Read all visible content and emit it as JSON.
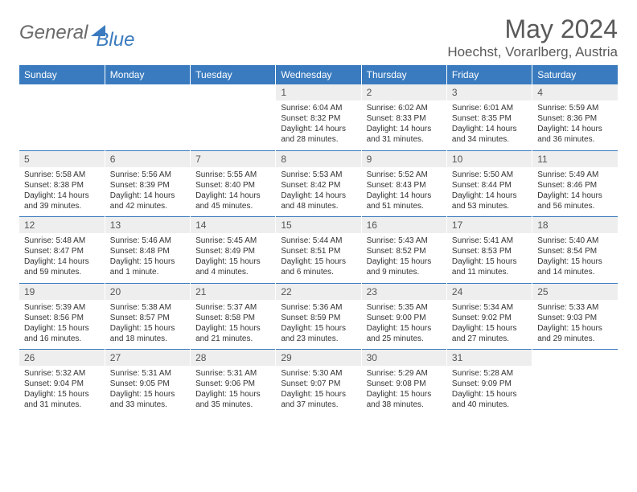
{
  "logo": {
    "part1": "General",
    "part2": "Blue"
  },
  "title": "May 2024",
  "location": "Hoechst, Vorarlberg, Austria",
  "colors": {
    "header_bg": "#3a7bbf",
    "header_text": "#ffffff",
    "daynum_bg": "#eeeeee",
    "text": "#333333",
    "title_text": "#595959"
  },
  "weekdays": [
    "Sunday",
    "Monday",
    "Tuesday",
    "Wednesday",
    "Thursday",
    "Friday",
    "Saturday"
  ],
  "weeks": [
    [
      null,
      null,
      null,
      {
        "n": "1",
        "sunrise": "6:04 AM",
        "sunset": "8:32 PM",
        "daylight": "14 hours and 28 minutes."
      },
      {
        "n": "2",
        "sunrise": "6:02 AM",
        "sunset": "8:33 PM",
        "daylight": "14 hours and 31 minutes."
      },
      {
        "n": "3",
        "sunrise": "6:01 AM",
        "sunset": "8:35 PM",
        "daylight": "14 hours and 34 minutes."
      },
      {
        "n": "4",
        "sunrise": "5:59 AM",
        "sunset": "8:36 PM",
        "daylight": "14 hours and 36 minutes."
      }
    ],
    [
      {
        "n": "5",
        "sunrise": "5:58 AM",
        "sunset": "8:38 PM",
        "daylight": "14 hours and 39 minutes."
      },
      {
        "n": "6",
        "sunrise": "5:56 AM",
        "sunset": "8:39 PM",
        "daylight": "14 hours and 42 minutes."
      },
      {
        "n": "7",
        "sunrise": "5:55 AM",
        "sunset": "8:40 PM",
        "daylight": "14 hours and 45 minutes."
      },
      {
        "n": "8",
        "sunrise": "5:53 AM",
        "sunset": "8:42 PM",
        "daylight": "14 hours and 48 minutes."
      },
      {
        "n": "9",
        "sunrise": "5:52 AM",
        "sunset": "8:43 PM",
        "daylight": "14 hours and 51 minutes."
      },
      {
        "n": "10",
        "sunrise": "5:50 AM",
        "sunset": "8:44 PM",
        "daylight": "14 hours and 53 minutes."
      },
      {
        "n": "11",
        "sunrise": "5:49 AM",
        "sunset": "8:46 PM",
        "daylight": "14 hours and 56 minutes."
      }
    ],
    [
      {
        "n": "12",
        "sunrise": "5:48 AM",
        "sunset": "8:47 PM",
        "daylight": "14 hours and 59 minutes."
      },
      {
        "n": "13",
        "sunrise": "5:46 AM",
        "sunset": "8:48 PM",
        "daylight": "15 hours and 1 minute."
      },
      {
        "n": "14",
        "sunrise": "5:45 AM",
        "sunset": "8:49 PM",
        "daylight": "15 hours and 4 minutes."
      },
      {
        "n": "15",
        "sunrise": "5:44 AM",
        "sunset": "8:51 PM",
        "daylight": "15 hours and 6 minutes."
      },
      {
        "n": "16",
        "sunrise": "5:43 AM",
        "sunset": "8:52 PM",
        "daylight": "15 hours and 9 minutes."
      },
      {
        "n": "17",
        "sunrise": "5:41 AM",
        "sunset": "8:53 PM",
        "daylight": "15 hours and 11 minutes."
      },
      {
        "n": "18",
        "sunrise": "5:40 AM",
        "sunset": "8:54 PM",
        "daylight": "15 hours and 14 minutes."
      }
    ],
    [
      {
        "n": "19",
        "sunrise": "5:39 AM",
        "sunset": "8:56 PM",
        "daylight": "15 hours and 16 minutes."
      },
      {
        "n": "20",
        "sunrise": "5:38 AM",
        "sunset": "8:57 PM",
        "daylight": "15 hours and 18 minutes."
      },
      {
        "n": "21",
        "sunrise": "5:37 AM",
        "sunset": "8:58 PM",
        "daylight": "15 hours and 21 minutes."
      },
      {
        "n": "22",
        "sunrise": "5:36 AM",
        "sunset": "8:59 PM",
        "daylight": "15 hours and 23 minutes."
      },
      {
        "n": "23",
        "sunrise": "5:35 AM",
        "sunset": "9:00 PM",
        "daylight": "15 hours and 25 minutes."
      },
      {
        "n": "24",
        "sunrise": "5:34 AM",
        "sunset": "9:02 PM",
        "daylight": "15 hours and 27 minutes."
      },
      {
        "n": "25",
        "sunrise": "5:33 AM",
        "sunset": "9:03 PM",
        "daylight": "15 hours and 29 minutes."
      }
    ],
    [
      {
        "n": "26",
        "sunrise": "5:32 AM",
        "sunset": "9:04 PM",
        "daylight": "15 hours and 31 minutes."
      },
      {
        "n": "27",
        "sunrise": "5:31 AM",
        "sunset": "9:05 PM",
        "daylight": "15 hours and 33 minutes."
      },
      {
        "n": "28",
        "sunrise": "5:31 AM",
        "sunset": "9:06 PM",
        "daylight": "15 hours and 35 minutes."
      },
      {
        "n": "29",
        "sunrise": "5:30 AM",
        "sunset": "9:07 PM",
        "daylight": "15 hours and 37 minutes."
      },
      {
        "n": "30",
        "sunrise": "5:29 AM",
        "sunset": "9:08 PM",
        "daylight": "15 hours and 38 minutes."
      },
      {
        "n": "31",
        "sunrise": "5:28 AM",
        "sunset": "9:09 PM",
        "daylight": "15 hours and 40 minutes."
      },
      null
    ]
  ],
  "labels": {
    "sunrise": "Sunrise: ",
    "sunset": "Sunset: ",
    "daylight": "Daylight: "
  }
}
